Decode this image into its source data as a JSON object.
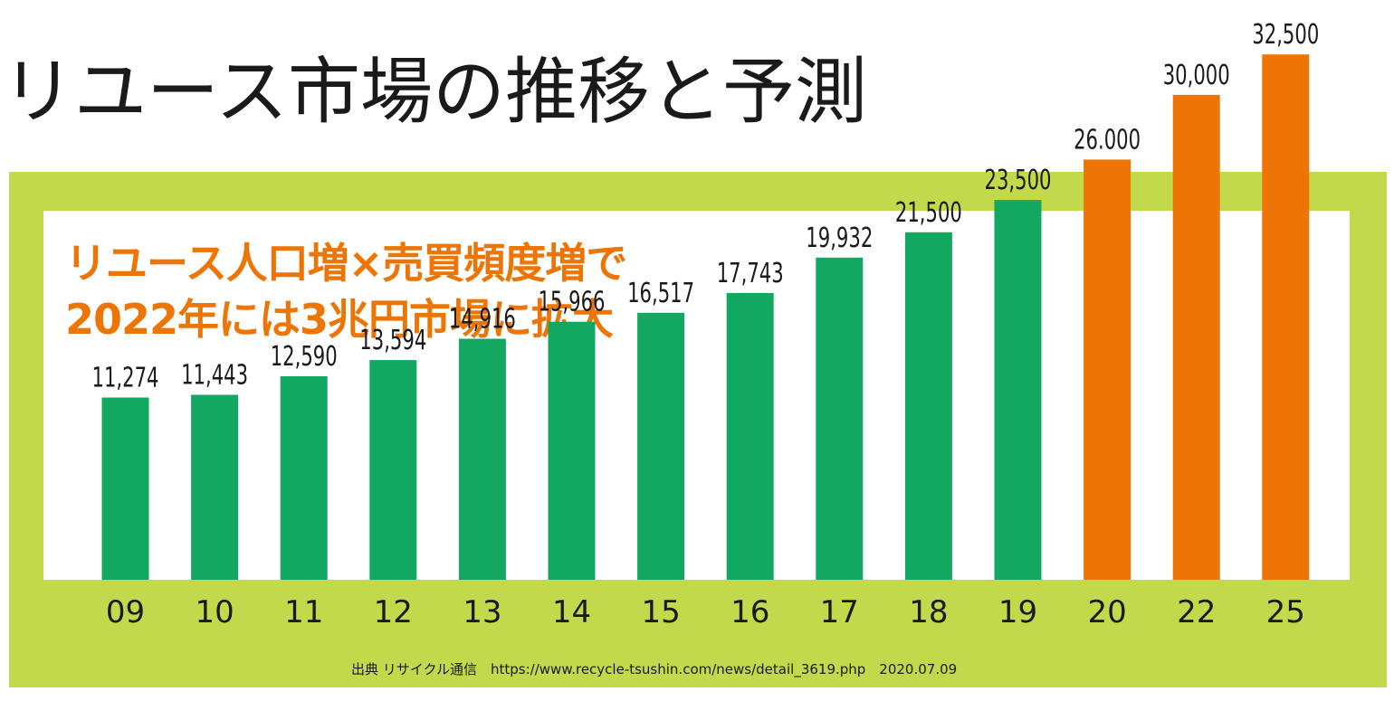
{
  "title": "リユース市場の推移と予測",
  "headline": {
    "line1": "リユース人口増×売買頻度増で",
    "line2": "2022年には3兆円市場に拡大"
  },
  "source": "出典 リサイクル通信　https://www.recycle-tsushin.com/news/detail_3619.php　2020.07.09",
  "colors": {
    "frame": "#c2d94b",
    "actual": "#12a862",
    "forecast": "#ec7505",
    "headline": "#ec7505",
    "text": "#1a1a1a"
  },
  "chart_data": {
    "type": "bar",
    "categories": [
      "09",
      "10",
      "11",
      "12",
      "13",
      "14",
      "15",
      "16",
      "17",
      "18",
      "19",
      "20",
      "22",
      "25"
    ],
    "values": [
      11274,
      11443,
      12590,
      13594,
      14916,
      15966,
      16517,
      17743,
      19932,
      21500,
      23500,
      26000,
      30000,
      32500
    ],
    "value_labels": [
      "11,274",
      "11,443",
      "12,590",
      "13,594",
      "14,916",
      "15,966",
      "16,517",
      "17,743",
      "19,932",
      "21,500",
      "23,500",
      "26.000",
      "30,000",
      "32,500"
    ],
    "bar_colors": [
      "actual",
      "actual",
      "actual",
      "actual",
      "actual",
      "actual",
      "actual",
      "actual",
      "actual",
      "actual",
      "actual",
      "forecast",
      "forecast",
      "forecast"
    ],
    "title": "",
    "xlabel": "",
    "ylabel": "",
    "grid": false
  }
}
